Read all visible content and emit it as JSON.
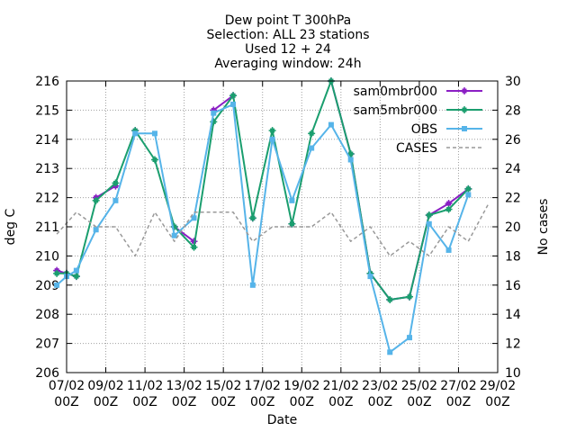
{
  "chart_data": {
    "type": "line",
    "title_lines": [
      "Dew point T 300hPa",
      "Selection: ALL     23 stations",
      "Used 12 + 24",
      "Averaging window: 24h"
    ],
    "xlabel": "Date",
    "ylabel": "deg C",
    "y2label": "No cases",
    "ylim": [
      206,
      216
    ],
    "y2lim": [
      10,
      30
    ],
    "xlim": [
      0,
      22
    ],
    "yticks": [
      206,
      207,
      208,
      209,
      210,
      211,
      212,
      213,
      214,
      215,
      216
    ],
    "y2ticks": [
      10,
      12,
      14,
      16,
      18,
      20,
      22,
      24,
      26,
      28,
      30
    ],
    "xticks": [
      {
        "x": 0,
        "line1": "07/02",
        "line2": "00Z"
      },
      {
        "x": 2,
        "line1": "09/02",
        "line2": "00Z"
      },
      {
        "x": 4,
        "line1": "11/02",
        "line2": "00Z"
      },
      {
        "x": 6,
        "line1": "13/02",
        "line2": "00Z"
      },
      {
        "x": 8,
        "line1": "15/02",
        "line2": "00Z"
      },
      {
        "x": 10,
        "line1": "17/02",
        "line2": "00Z"
      },
      {
        "x": 12,
        "line1": "19/02",
        "line2": "00Z"
      },
      {
        "x": 14,
        "line1": "21/02",
        "line2": "00Z"
      },
      {
        "x": 16,
        "line1": "23/02",
        "line2": "00Z"
      },
      {
        "x": 18,
        "line1": "25/02",
        "line2": "00Z"
      },
      {
        "x": 20,
        "line1": "27/02",
        "line2": "00Z"
      },
      {
        "x": 22,
        "line1": "29/02",
        "line2": "00Z"
      }
    ],
    "grid": true,
    "legend_position": "top-right",
    "series": [
      {
        "name": "sam0mbr000",
        "color": "#8b1fc4",
        "marker": "plus-square",
        "axis": "y",
        "segments": [
          [
            [
              -0.5,
              209.5
            ],
            [
              0,
              209.4
            ],
            [
              0.5,
              209.3
            ]
          ],
          [
            [
              1.5,
              212.0
            ],
            [
              2.5,
              212.4
            ]
          ],
          [
            [
              3.5,
              214.3
            ]
          ],
          [
            [
              5.5,
              211.0
            ],
            [
              6.5,
              210.5
            ]
          ],
          [
            [
              7.5,
              215.0
            ],
            [
              8.5,
              215.5
            ]
          ],
          [
            [
              9.5,
              211.3
            ]
          ],
          [
            [
              11.5,
              211.1
            ]
          ],
          [
            [
              13.5,
              216.0
            ],
            [
              14.5,
              213.5
            ],
            [
              15.5,
              209.4
            ],
            [
              16.5,
              208.5
            ],
            [
              17.5,
              208.6
            ],
            [
              18.5,
              211.4
            ],
            [
              19.5,
              211.8
            ],
            [
              20.5,
              212.3
            ]
          ]
        ]
      },
      {
        "name": "sam5mbr000",
        "color": "#1a9e6e",
        "marker": "plus-square",
        "axis": "y",
        "segments": [
          [
            [
              -0.5,
              209.4
            ],
            [
              0,
              209.4
            ],
            [
              0.5,
              209.3
            ],
            [
              1.5,
              211.9
            ],
            [
              2.5,
              212.5
            ],
            [
              3.5,
              214.3
            ],
            [
              4.5,
              213.3
            ],
            [
              5.5,
              211.0
            ],
            [
              6.5,
              210.3
            ],
            [
              7.5,
              214.6
            ],
            [
              8.5,
              215.5
            ],
            [
              9.5,
              211.3
            ],
            [
              10.5,
              214.3
            ],
            [
              11.5,
              211.1
            ],
            [
              12.5,
              214.2
            ],
            [
              13.5,
              216.0
            ],
            [
              14.5,
              213.5
            ],
            [
              15.5,
              209.4
            ],
            [
              16.5,
              208.5
            ],
            [
              17.5,
              208.6
            ],
            [
              18.5,
              211.4
            ],
            [
              19.5,
              211.6
            ],
            [
              20.5,
              212.3
            ]
          ]
        ]
      },
      {
        "name": "OBS",
        "color": "#56b4e9",
        "marker": "filled-square",
        "axis": "y",
        "segments": [
          [
            [
              -0.5,
              209.0
            ],
            [
              0,
              209.3
            ],
            [
              0.5,
              209.5
            ],
            [
              1.5,
              210.9
            ],
            [
              2.5,
              211.9
            ],
            [
              3.5,
              214.2
            ],
            [
              4.5,
              214.2
            ],
            [
              5.5,
              210.7
            ],
            [
              6.5,
              211.3
            ],
            [
              7.5,
              214.9
            ],
            [
              8.5,
              215.2
            ],
            [
              9.5,
              209.0
            ],
            [
              10.5,
              214.0
            ],
            [
              11.5,
              211.9
            ],
            [
              12.5,
              213.7
            ],
            [
              13.5,
              214.5
            ],
            [
              14.5,
              213.3
            ],
            [
              15.5,
              209.3
            ],
            [
              16.5,
              206.7
            ],
            [
              17.5,
              207.2
            ],
            [
              18.5,
              211.1
            ],
            [
              19.5,
              210.2
            ],
            [
              20.5,
              212.1
            ]
          ]
        ]
      },
      {
        "name": "CASES",
        "color": "#999999",
        "marker": "none",
        "dash": true,
        "axis": "y2",
        "segments": [
          [
            [
              -0.5,
              19.5
            ],
            [
              0.5,
              21.0
            ],
            [
              1.5,
              20.0
            ],
            [
              2.5,
              20.0
            ],
            [
              3.5,
              18.0
            ],
            [
              4.5,
              21.0
            ],
            [
              5.5,
              19.0
            ],
            [
              6.5,
              21.0
            ],
            [
              7.5,
              21.0
            ],
            [
              8.5,
              21.0
            ],
            [
              9.5,
              19.0
            ],
            [
              10.5,
              20.0
            ],
            [
              11.5,
              20.0
            ],
            [
              12.5,
              20.0
            ],
            [
              13.5,
              21.0
            ],
            [
              14.5,
              19.0
            ],
            [
              15.5,
              20.0
            ],
            [
              16.5,
              18.0
            ],
            [
              17.5,
              19.0
            ],
            [
              18.5,
              18.0
            ],
            [
              19.5,
              20.0
            ],
            [
              20.5,
              19.0
            ],
            [
              21.5,
              21.5
            ]
          ]
        ]
      }
    ]
  }
}
